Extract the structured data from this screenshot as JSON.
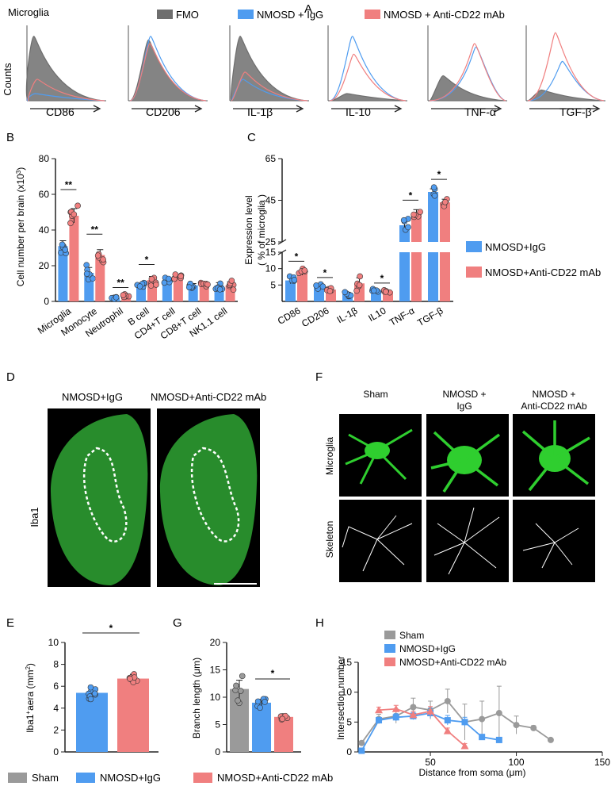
{
  "colors": {
    "igg": "#4f9cf0",
    "anti": "#f07f7f",
    "sham": "#9a9a9a",
    "fmo": "#6e6e6e",
    "tissue": "#2fa534"
  },
  "panelA": {
    "letter": "A",
    "cell": "Microglia",
    "ylabel": "Counts",
    "legend": [
      "FMO",
      "NMOSD + IgG",
      "NMOSD + Anti-CD22 mAb"
    ],
    "markers": [
      "CD86",
      "CD206",
      "IL-1β",
      "IL-10",
      "TNF-α",
      "TGF-β"
    ]
  },
  "panelB": {
    "letter": "B",
    "ylabel": "Cell number per brain (x10",
    "ylabel_sup": "3",
    "categories": [
      "Microglia",
      "Monocyte",
      "Neutrophil",
      "B cell",
      "CD4+T cell",
      "CD8+T cell",
      "NK1.1 cell"
    ],
    "ticks": [
      "0",
      "20",
      "40",
      "60",
      "80"
    ],
    "stars": [
      "**",
      "**",
      "**",
      "*",
      "",
      "",
      ""
    ],
    "chart_data": {
      "type": "bar",
      "ylim": [
        0,
        80
      ],
      "categories": [
        "Microglia",
        "Monocyte",
        "Neutrophil",
        "B cell",
        "CD4+T cell",
        "CD8+T cell",
        "NK1.1 cell"
      ],
      "series": [
        {
          "name": "NMOSD+IgG",
          "values": [
            31,
            16,
            2,
            9,
            12,
            9,
            9
          ],
          "err": [
            3,
            3,
            0.5,
            1,
            1,
            1,
            1.5
          ]
        },
        {
          "name": "NMOSD+Anti-CD22 mAb",
          "values": [
            48,
            26,
            3,
            12,
            14,
            10,
            9
          ],
          "err": [
            4,
            3,
            0.7,
            2,
            1,
            1,
            2
          ]
        }
      ]
    }
  },
  "panelC": {
    "letter": "C",
    "ylabel1": "Expression level",
    "ylabel2": "( % of microglia )",
    "categories": [
      "CD86",
      "CD206",
      "IL-1β",
      "IL10",
      "TNF-α",
      "TGF-β"
    ],
    "ticks_low": [
      "5",
      "10",
      "15"
    ],
    "ticks_high": [
      "25",
      "45",
      "65"
    ],
    "stars": [
      "*",
      "*",
      "",
      "*",
      "*",
      "*"
    ],
    "legend": [
      "NMOSD+IgG",
      "NMOSD+Anti-CD22 mAb"
    ],
    "chart_data": {
      "type": "bar",
      "ylim": [
        0,
        65
      ],
      "axis_break": [
        15,
        25
      ],
      "categories": [
        "CD86",
        "CD206",
        "IL-1β",
        "IL10",
        "TNF-α",
        "TGF-β"
      ],
      "series": [
        {
          "name": "NMOSD+IgG",
          "values": [
            6.4,
            4.6,
            2.2,
            3.4,
            33,
            49
          ],
          "err": [
            1,
            0.5,
            0.6,
            0.3,
            2.5,
            1.5
          ]
        },
        {
          "name": "NMOSD+Anti-CD22 mAb",
          "values": [
            8.8,
            3.6,
            5.5,
            3.1,
            39,
            44
          ],
          "err": [
            0.8,
            0.3,
            1.7,
            0.3,
            1.5,
            1.5
          ]
        }
      ]
    }
  },
  "panelD": {
    "letter": "D",
    "labels": [
      "NMOSD+IgG",
      "NMOSD+Anti-CD22 mAb"
    ],
    "stain": "Iba1"
  },
  "panelF": {
    "letter": "F",
    "cols": [
      "Sham",
      "NMOSD +",
      "IgG",
      "NMOSD +",
      "Anti-CD22 mAb"
    ],
    "rows": [
      "Microglia",
      "Skeleton"
    ]
  },
  "panelE": {
    "letter": "E",
    "ylabel": "Iba1",
    "ylabel_rest": "aera (mm",
    "ticks": [
      "0",
      "2",
      "4",
      "6",
      "8",
      "10"
    ],
    "star": "*",
    "chart_data": {
      "type": "bar",
      "ylim": [
        0,
        10
      ],
      "categories": [
        "NMOSD+IgG",
        "NMOSD+Anti-CD22 mAb"
      ],
      "values": [
        5.4,
        6.7
      ],
      "err": [
        0.4,
        0.4
      ]
    }
  },
  "panelG": {
    "letter": "G",
    "ylabel": "Branch length (μm)",
    "ticks": [
      "0",
      "5",
      "10",
      "15",
      "20"
    ],
    "star": "*",
    "chart_data": {
      "type": "bar",
      "ylim": [
        0,
        20
      ],
      "categories": [
        "Sham",
        "NMOSD+IgG",
        "NMOSD+Anti-CD22 mAb"
      ],
      "values": [
        11.5,
        9.0,
        6.4
      ],
      "err": [
        1.6,
        0.6,
        0.3
      ]
    }
  },
  "panelH": {
    "letter": "H",
    "ylabel": "Intersection number",
    "xlabel": "Distance from soma (μm)",
    "xticks": [
      "50",
      "100",
      "150"
    ],
    "yticks": [
      "0",
      "5",
      "10",
      "15"
    ],
    "legend": [
      "Sham",
      "NMOSD+IgG",
      "NMOSD+Anti-CD22 mAb"
    ],
    "chart_data": {
      "type": "line",
      "xlim": [
        8,
        150
      ],
      "ylim": [
        0,
        15
      ],
      "series": [
        {
          "name": "Sham",
          "x": [
            10,
            20,
            30,
            40,
            50,
            60,
            70,
            80,
            90,
            100,
            110,
            120
          ],
          "y": [
            1.5,
            5.5,
            6,
            7.5,
            7,
            8.5,
            5,
            5.5,
            6.5,
            4.5,
            4,
            2
          ],
          "err": [
            0.3,
            0.8,
            1.2,
            1.5,
            1.5,
            2,
            3,
            3,
            4.5,
            1.5,
            0.4,
            0.2
          ]
        },
        {
          "name": "NMOSD+IgG",
          "x": [
            10,
            20,
            30,
            40,
            50,
            60,
            70,
            80,
            90
          ],
          "y": [
            0.2,
            5.3,
            5.8,
            6,
            6.5,
            5.3,
            5,
            2.5,
            2
          ],
          "err": [
            0.2,
            0.5,
            0.6,
            0.6,
            0.8,
            0.8,
            0.8,
            0.4,
            0.4
          ]
        },
        {
          "name": "NMOSD+Anti-CD22 mAb",
          "x": [
            20,
            30,
            40,
            50,
            60,
            70
          ],
          "y": [
            7,
            7.2,
            6.2,
            6.8,
            3.5,
            1
          ],
          "err": [
            0.5,
            0.6,
            0.6,
            0.8,
            0.5,
            0.4
          ]
        }
      ]
    }
  },
  "bottomLegend": [
    "Sham",
    "NMOSD+IgG",
    "NMOSD+Anti-CD22 mAb"
  ]
}
